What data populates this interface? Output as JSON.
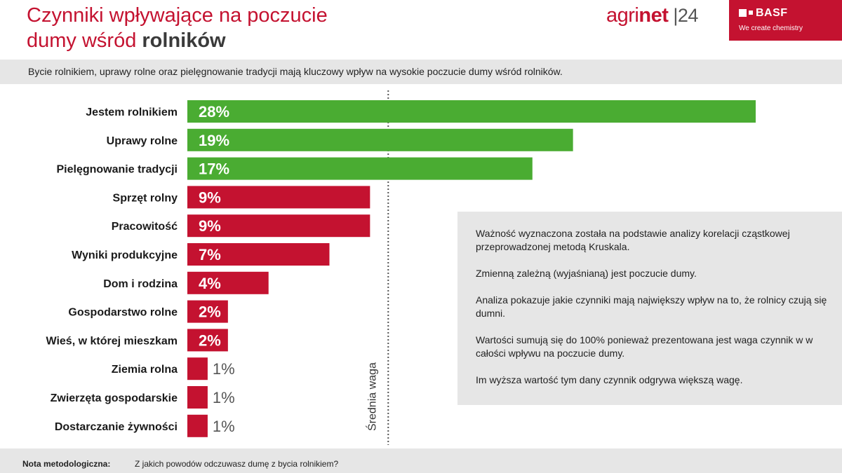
{
  "header": {
    "title_line1": "Czynniki wpływające na poczucie",
    "title_line2_regular": "dumy wśród ",
    "title_line2_bold": "rolników",
    "brand_agri": "agri",
    "brand_net": "net",
    "brand_year": "24",
    "basf_logo": "BASF",
    "basf_tagline": "We create chemistry"
  },
  "subtitle": "Bycie rolnikiem, uprawy rolne oraz pielęgnowanie tradycji mają kluczowy wpływ na wysokie poczucie dumy wśród rolników.",
  "chart_data": {
    "type": "bar",
    "orientation": "horizontal",
    "categories": [
      "Jestem rolnikiem",
      "Uprawy rolne",
      "Pielęgnowanie tradycji",
      "Sprzęt rolny",
      "Pracowitość",
      "Wyniki produkcyjne",
      "Dom i rodzina",
      "Gospodarstwo rolne",
      "Wieś, w której mieszkam",
      "Ziemia rolna",
      "Zwierzęta gospodarskie",
      "Dostarczanie żywności"
    ],
    "values": [
      28,
      19,
      17,
      9,
      9,
      7,
      4,
      2,
      2,
      1,
      1,
      1
    ],
    "value_labels": [
      "28%",
      "19%",
      "17%",
      "9%",
      "9%",
      "7%",
      "4%",
      "2%",
      "2%",
      "1%",
      "1%",
      "1%"
    ],
    "colors": [
      "#4aac32",
      "#4aac32",
      "#4aac32",
      "#c41230",
      "#c41230",
      "#c41230",
      "#c41230",
      "#c41230",
      "#c41230",
      "#c41230",
      "#c41230",
      "#c41230"
    ],
    "reference_line": {
      "value": 10,
      "label": "Średnia waga"
    },
    "xlim": [
      0,
      28
    ]
  },
  "info": {
    "p1": "Ważność wyznaczona została na podstawie analizy korelacji cząstkowej przeprowadzonej metodą Kruskala.",
    "p2": "Zmienną zależną (wyjaśnianą) jest poczucie dumy.",
    "p3": "Analiza pokazuje jakie czynniki mają największy wpływ na to, że rolnicy czują się dumni.",
    "p4": "Wartości sumują się do 100% ponieważ prezentowana jest waga czynnik w w całości wpływu na poczucie dumy.",
    "p5": "Im wyższa wartość tym dany czynnik odgrywa większą wagę."
  },
  "footer": {
    "label": "Nota metodologiczna:",
    "text": "Z jakich powodów odczuwasz dumę z bycia rolnikiem?"
  },
  "colors": {
    "brand_red": "#c41230",
    "bar_green": "#4aac32",
    "band_gray": "#e6e6e6"
  }
}
